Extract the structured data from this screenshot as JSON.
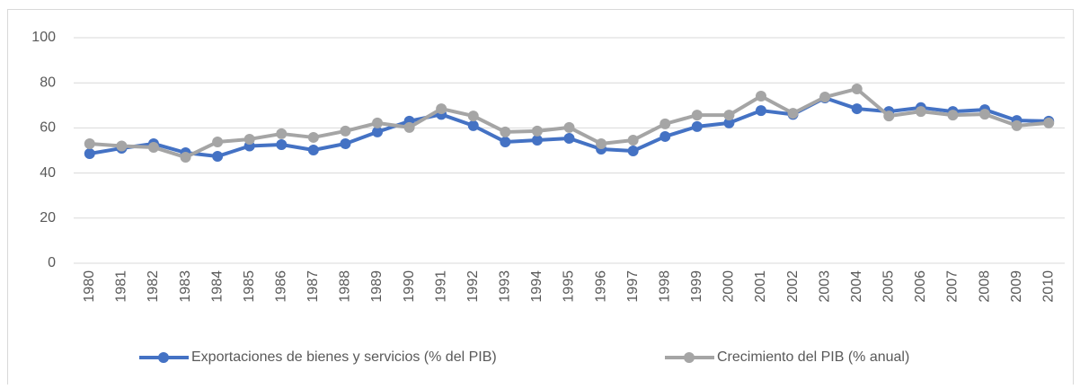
{
  "chart_data": {
    "type": "line",
    "categories": [
      "1980",
      "1981",
      "1982",
      "1983",
      "1984",
      "1985",
      "1986",
      "1987",
      "1988",
      "1989",
      "1990",
      "1991",
      "1992",
      "1993",
      "1994",
      "1995",
      "1996",
      "1997",
      "1998",
      "1999",
      "2000",
      "2001",
      "2002",
      "2003",
      "2004",
      "2005",
      "2006",
      "2007",
      "2008",
      "2009",
      "2010"
    ],
    "series": [
      {
        "name": "Exportaciones de bienes y servicios (% del PIB)",
        "color": "#4472c4",
        "values": [
          48.6,
          51,
          53,
          49,
          47.4,
          52,
          52.6,
          50.2,
          53,
          58.2,
          63,
          66,
          61,
          53.8,
          54.6,
          55.4,
          50.6,
          49.8,
          56.2,
          60.6,
          62.2,
          67.7,
          66,
          73.3,
          68.5,
          67.3,
          69,
          67.3,
          68.1,
          63.3,
          63
        ]
      },
      {
        "name": "Crecimiento del PIB (% anual)",
        "color": "#a5a5a5",
        "values": [
          53,
          52,
          51.4,
          47,
          53.8,
          55,
          57.4,
          55.8,
          58.6,
          62.2,
          60.2,
          68.5,
          65.3,
          58.2,
          58.6,
          60.2,
          53,
          54.6,
          61.8,
          65.7,
          65.7,
          74.1,
          66.5,
          73.7,
          77.3,
          65.3,
          67.3,
          65.7,
          66.1,
          61,
          62.2
        ]
      }
    ],
    "ylim": [
      0,
      100
    ],
    "yticks": [
      0,
      20,
      40,
      60,
      80,
      100
    ],
    "grid": true,
    "legend": "bottom"
  }
}
